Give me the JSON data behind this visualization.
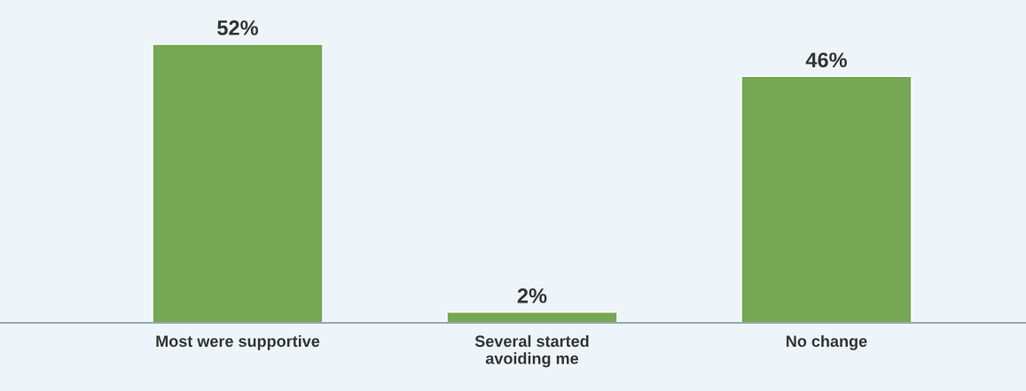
{
  "chart_data": {
    "type": "bar",
    "categories": [
      "Most were supportive",
      "Several started\navoiding me",
      "No change"
    ],
    "values": [
      52,
      2,
      46
    ],
    "value_labels": [
      "52%",
      "2%",
      "46%"
    ],
    "color": "#76a755"
  }
}
